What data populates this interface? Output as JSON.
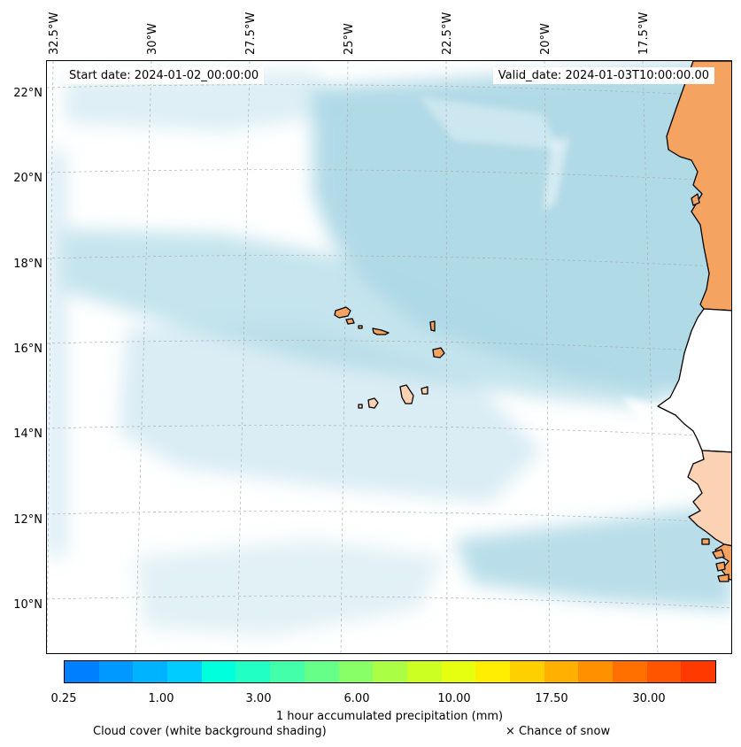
{
  "header": {
    "start_date": "Start date: 2024-01-02_00:00:00",
    "valid_date": "Valid_date: 2024-01-03T10:00:00.00"
  },
  "map": {
    "lon_labels": [
      "32.5°W",
      "30°W",
      "27.5°W",
      "25°W",
      "22.5°W",
      "20°W",
      "17.5°W"
    ],
    "lat_labels": [
      "22°N",
      "20°N",
      "18°N",
      "16°N",
      "14°N",
      "12°N",
      "10°N"
    ],
    "colors": {
      "ocean": "#ffffff",
      "cloud": "#add8e6",
      "land_dry": "#f4a460",
      "land_light": "#fbd3b4",
      "coastline": "#000000",
      "gridline": "#b0b0b0"
    }
  },
  "colorbar": {
    "title": "1 hour accumulated precipitation (mm)",
    "tick_labels": [
      "0.25",
      "1.00",
      "3.00",
      "6.00",
      "10.00",
      "17.50",
      "30.00"
    ],
    "colors": [
      "#0080ff",
      "#0099ff",
      "#00b3ff",
      "#00ccff",
      "#00ffdd",
      "#22ffc4",
      "#44ffaa",
      "#66ff88",
      "#88ff66",
      "#aaff44",
      "#ccff22",
      "#e6ff11",
      "#ffee00",
      "#ffd000",
      "#ffb000",
      "#ff9000",
      "#ff7000",
      "#ff5500",
      "#ff3a00"
    ]
  },
  "legend": {
    "cloud_cover": "Cloud cover (white background shading)",
    "snow": "× Chance of snow"
  }
}
